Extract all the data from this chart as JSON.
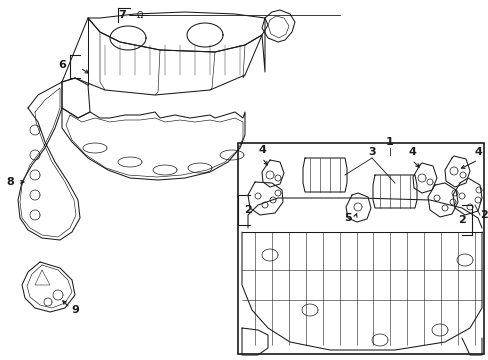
{
  "bg_color": "#ffffff",
  "line_color": "#1a1a1a",
  "lw": 0.75,
  "figsize": [
    4.89,
    3.6
  ],
  "dpi": 100
}
